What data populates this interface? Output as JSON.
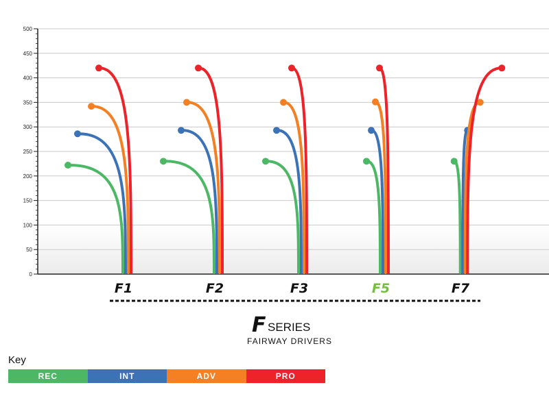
{
  "chart_data": {
    "type": "line",
    "title": "",
    "xlabel": "",
    "ylabel": "",
    "ylim": [
      0,
      500
    ],
    "yticks": [
      0,
      50,
      100,
      150,
      200,
      250,
      300,
      350,
      400,
      450,
      500
    ],
    "grid": true,
    "categories": [
      "F1",
      "F2",
      "F3",
      "F5",
      "F7"
    ],
    "highlight_category": "F5",
    "series": [
      {
        "name": "REC",
        "color": "#4cb865",
        "peaks": [
          222,
          230,
          230,
          230,
          230
        ]
      },
      {
        "name": "INT",
        "color": "#3c73b7",
        "peaks": [
          286,
          293,
          293,
          293,
          293
        ]
      },
      {
        "name": "ADV",
        "color": "#f58023",
        "peaks": [
          342,
          350,
          350,
          351,
          350
        ]
      },
      {
        "name": "PRO",
        "color": "#ee2229",
        "peaks": [
          420,
          420,
          420,
          420,
          420
        ]
      }
    ]
  },
  "brand": {
    "letter": "F",
    "series": "SERIES",
    "subtitle": "FAIRWAY DRIVERS"
  },
  "key": {
    "title": "Key",
    "items": [
      {
        "label": "REC",
        "color": "#4cb865"
      },
      {
        "label": "INT",
        "color": "#3c73b7"
      },
      {
        "label": "ADV",
        "color": "#f58023"
      },
      {
        "label": "PRO",
        "color": "#ee2229"
      }
    ]
  },
  "colors": {
    "highlight": "#73bf3b",
    "label": "#111111"
  }
}
